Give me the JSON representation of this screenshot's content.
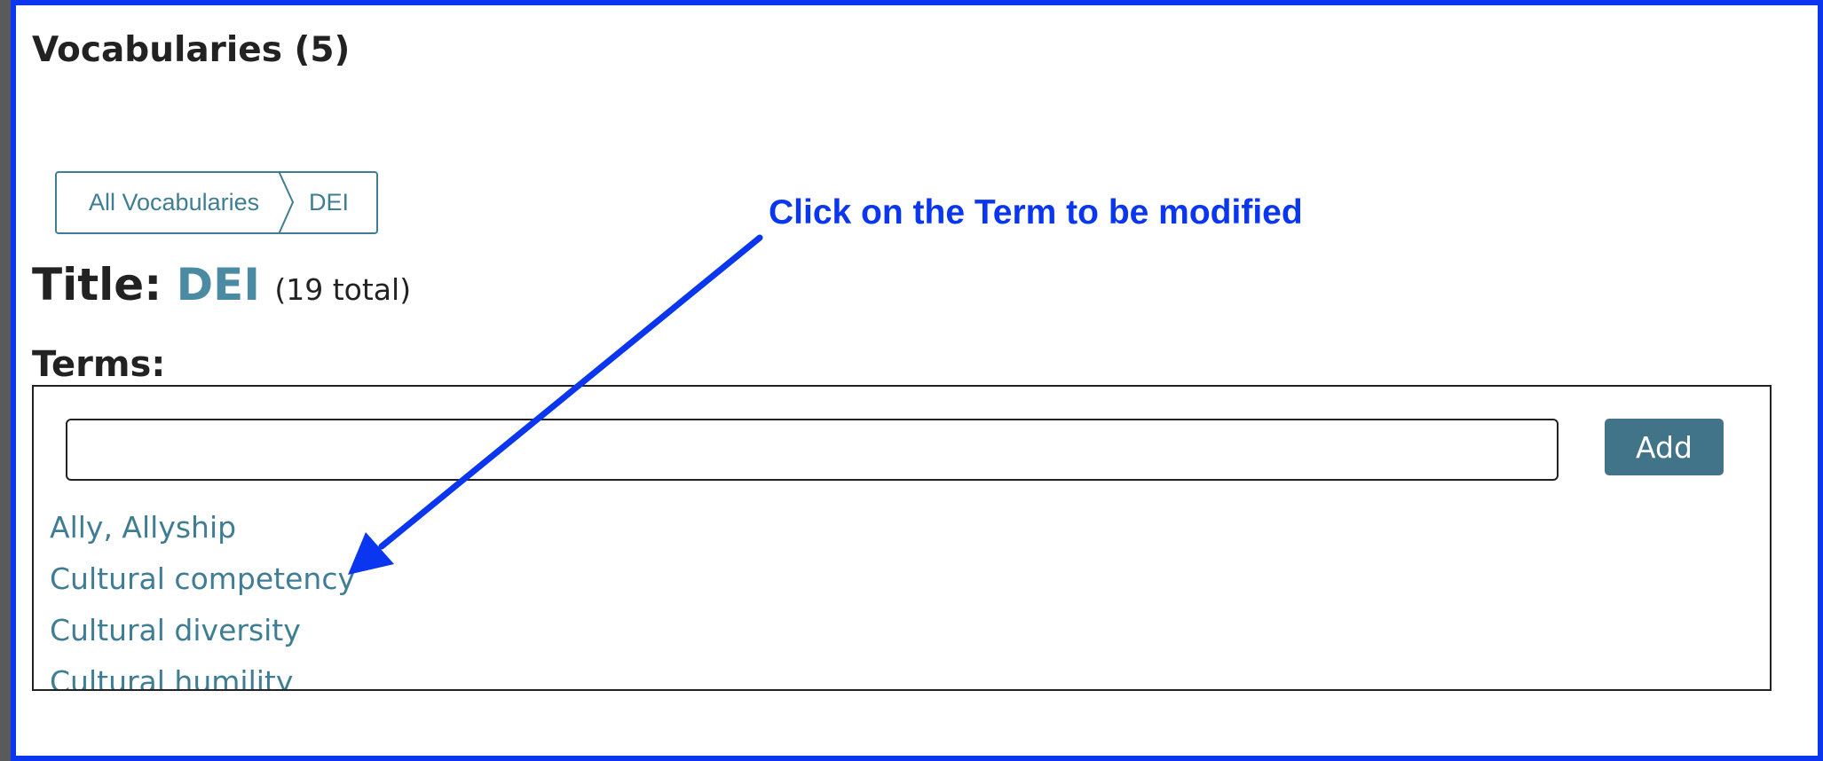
{
  "heading": "Vocabularies (5)",
  "breadcrumb": [
    "All Vocabularies",
    "DEI"
  ],
  "title": {
    "label": "Title:",
    "value": "DEI",
    "count": "(19 total)"
  },
  "terms": {
    "label": "Terms:",
    "input_value": "",
    "add_label": "Add",
    "items": [
      "Ally, Allyship",
      "Cultural competency",
      "Cultural diversity",
      "Cultural humility"
    ]
  },
  "annotation": {
    "text": "Click on the Term to be modified"
  },
  "colors": {
    "frame": "#0a36f0",
    "link": "#3f7d94",
    "button": "#417489",
    "annotation": "#0a36f0"
  },
  "icons": {
    "breadcrumb_separator": "chevron-right-icon",
    "annotation_arrow": "arrow-icon"
  }
}
